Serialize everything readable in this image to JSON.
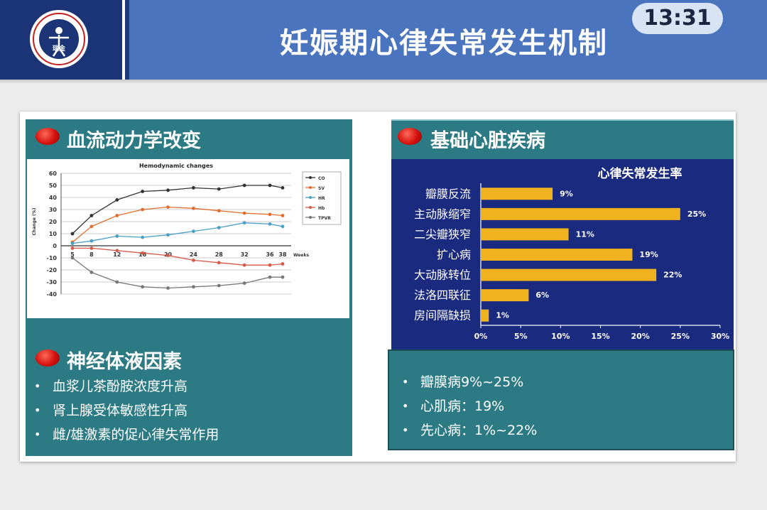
{
  "header": {
    "title": "妊娠期心律失常发生机制",
    "time": "13:31",
    "logo_text": "瑞金"
  },
  "colors": {
    "header_dark": "#1b3475",
    "header_light": "#4a74bd",
    "panel_teal": "#2b7a84",
    "bar_chart_bg": "#1a2a7e",
    "bar_color": "#f0b21e",
    "accent_red": "#d4110c"
  },
  "sections": {
    "hemodynamics": {
      "title": "血流动力学改变"
    },
    "heart_disease": {
      "title": "基础心脏疾病"
    },
    "neurohumoral": {
      "title": "神经体液因素",
      "bullets": [
        "血浆儿茶酚胺浓度升高",
        "肾上腺受体敏感性升高",
        "雌/雄激素的促心律失常作用"
      ]
    },
    "disease_summary": {
      "bullets": [
        "瓣膜病9%~25%",
        "心肌病：19%",
        "先心病：1%~22%"
      ]
    }
  },
  "chart_data": [
    {
      "type": "line",
      "title": "Hemodynamic changes",
      "xlabel": "Weeks",
      "ylabel": "Change (%)",
      "x": [
        5,
        8,
        12,
        16,
        20,
        24,
        28,
        32,
        36,
        38
      ],
      "xticks": [
        "5",
        "8",
        "12",
        "16",
        "20",
        "24",
        "28",
        "32",
        "36",
        "38"
      ],
      "ylim": [
        -40,
        60
      ],
      "yticks": [
        60,
        50,
        40,
        30,
        20,
        10,
        0,
        -10,
        -20,
        -30,
        -40
      ],
      "grid": true,
      "legend": "top-right",
      "series": [
        {
          "name": "CO",
          "color": "#333333",
          "values": [
            10,
            25,
            38,
            45,
            46,
            48,
            47,
            50,
            50,
            48
          ]
        },
        {
          "name": "SV",
          "color": "#e06e2e",
          "values": [
            3,
            16,
            25,
            30,
            32,
            31,
            29,
            27,
            26,
            25
          ]
        },
        {
          "name": "HR",
          "color": "#4a9fc6",
          "values": [
            2,
            4,
            8,
            7,
            9,
            12,
            15,
            19,
            18,
            16
          ]
        },
        {
          "name": "Hb",
          "color": "#d85a48",
          "values": [
            -2,
            -2,
            -4,
            -6,
            -8,
            -12,
            -14,
            -16,
            -16,
            -15
          ]
        },
        {
          "name": "TPVR",
          "color": "#777777",
          "values": [
            -10,
            -22,
            -30,
            -34,
            -35,
            -34,
            -33,
            -31,
            -26,
            -26
          ]
        }
      ]
    },
    {
      "type": "bar",
      "orientation": "horizontal",
      "title": "心律失常发生率",
      "categories": [
        "瓣膜反流",
        "主动脉缩窄",
        "二尖瓣狭窄",
        "扩心病",
        "大动脉转位",
        "法洛四联征",
        "房间隔缺损"
      ],
      "values": [
        9,
        25,
        11,
        19,
        22,
        6,
        1
      ],
      "value_labels": [
        "9%",
        "25%",
        "11%",
        "19%",
        "22%",
        "6%",
        "1%"
      ],
      "xlim": [
        0,
        30
      ],
      "xticks": [
        "0%",
        "5%",
        "10%",
        "15%",
        "20%",
        "25%",
        "30%"
      ]
    }
  ]
}
